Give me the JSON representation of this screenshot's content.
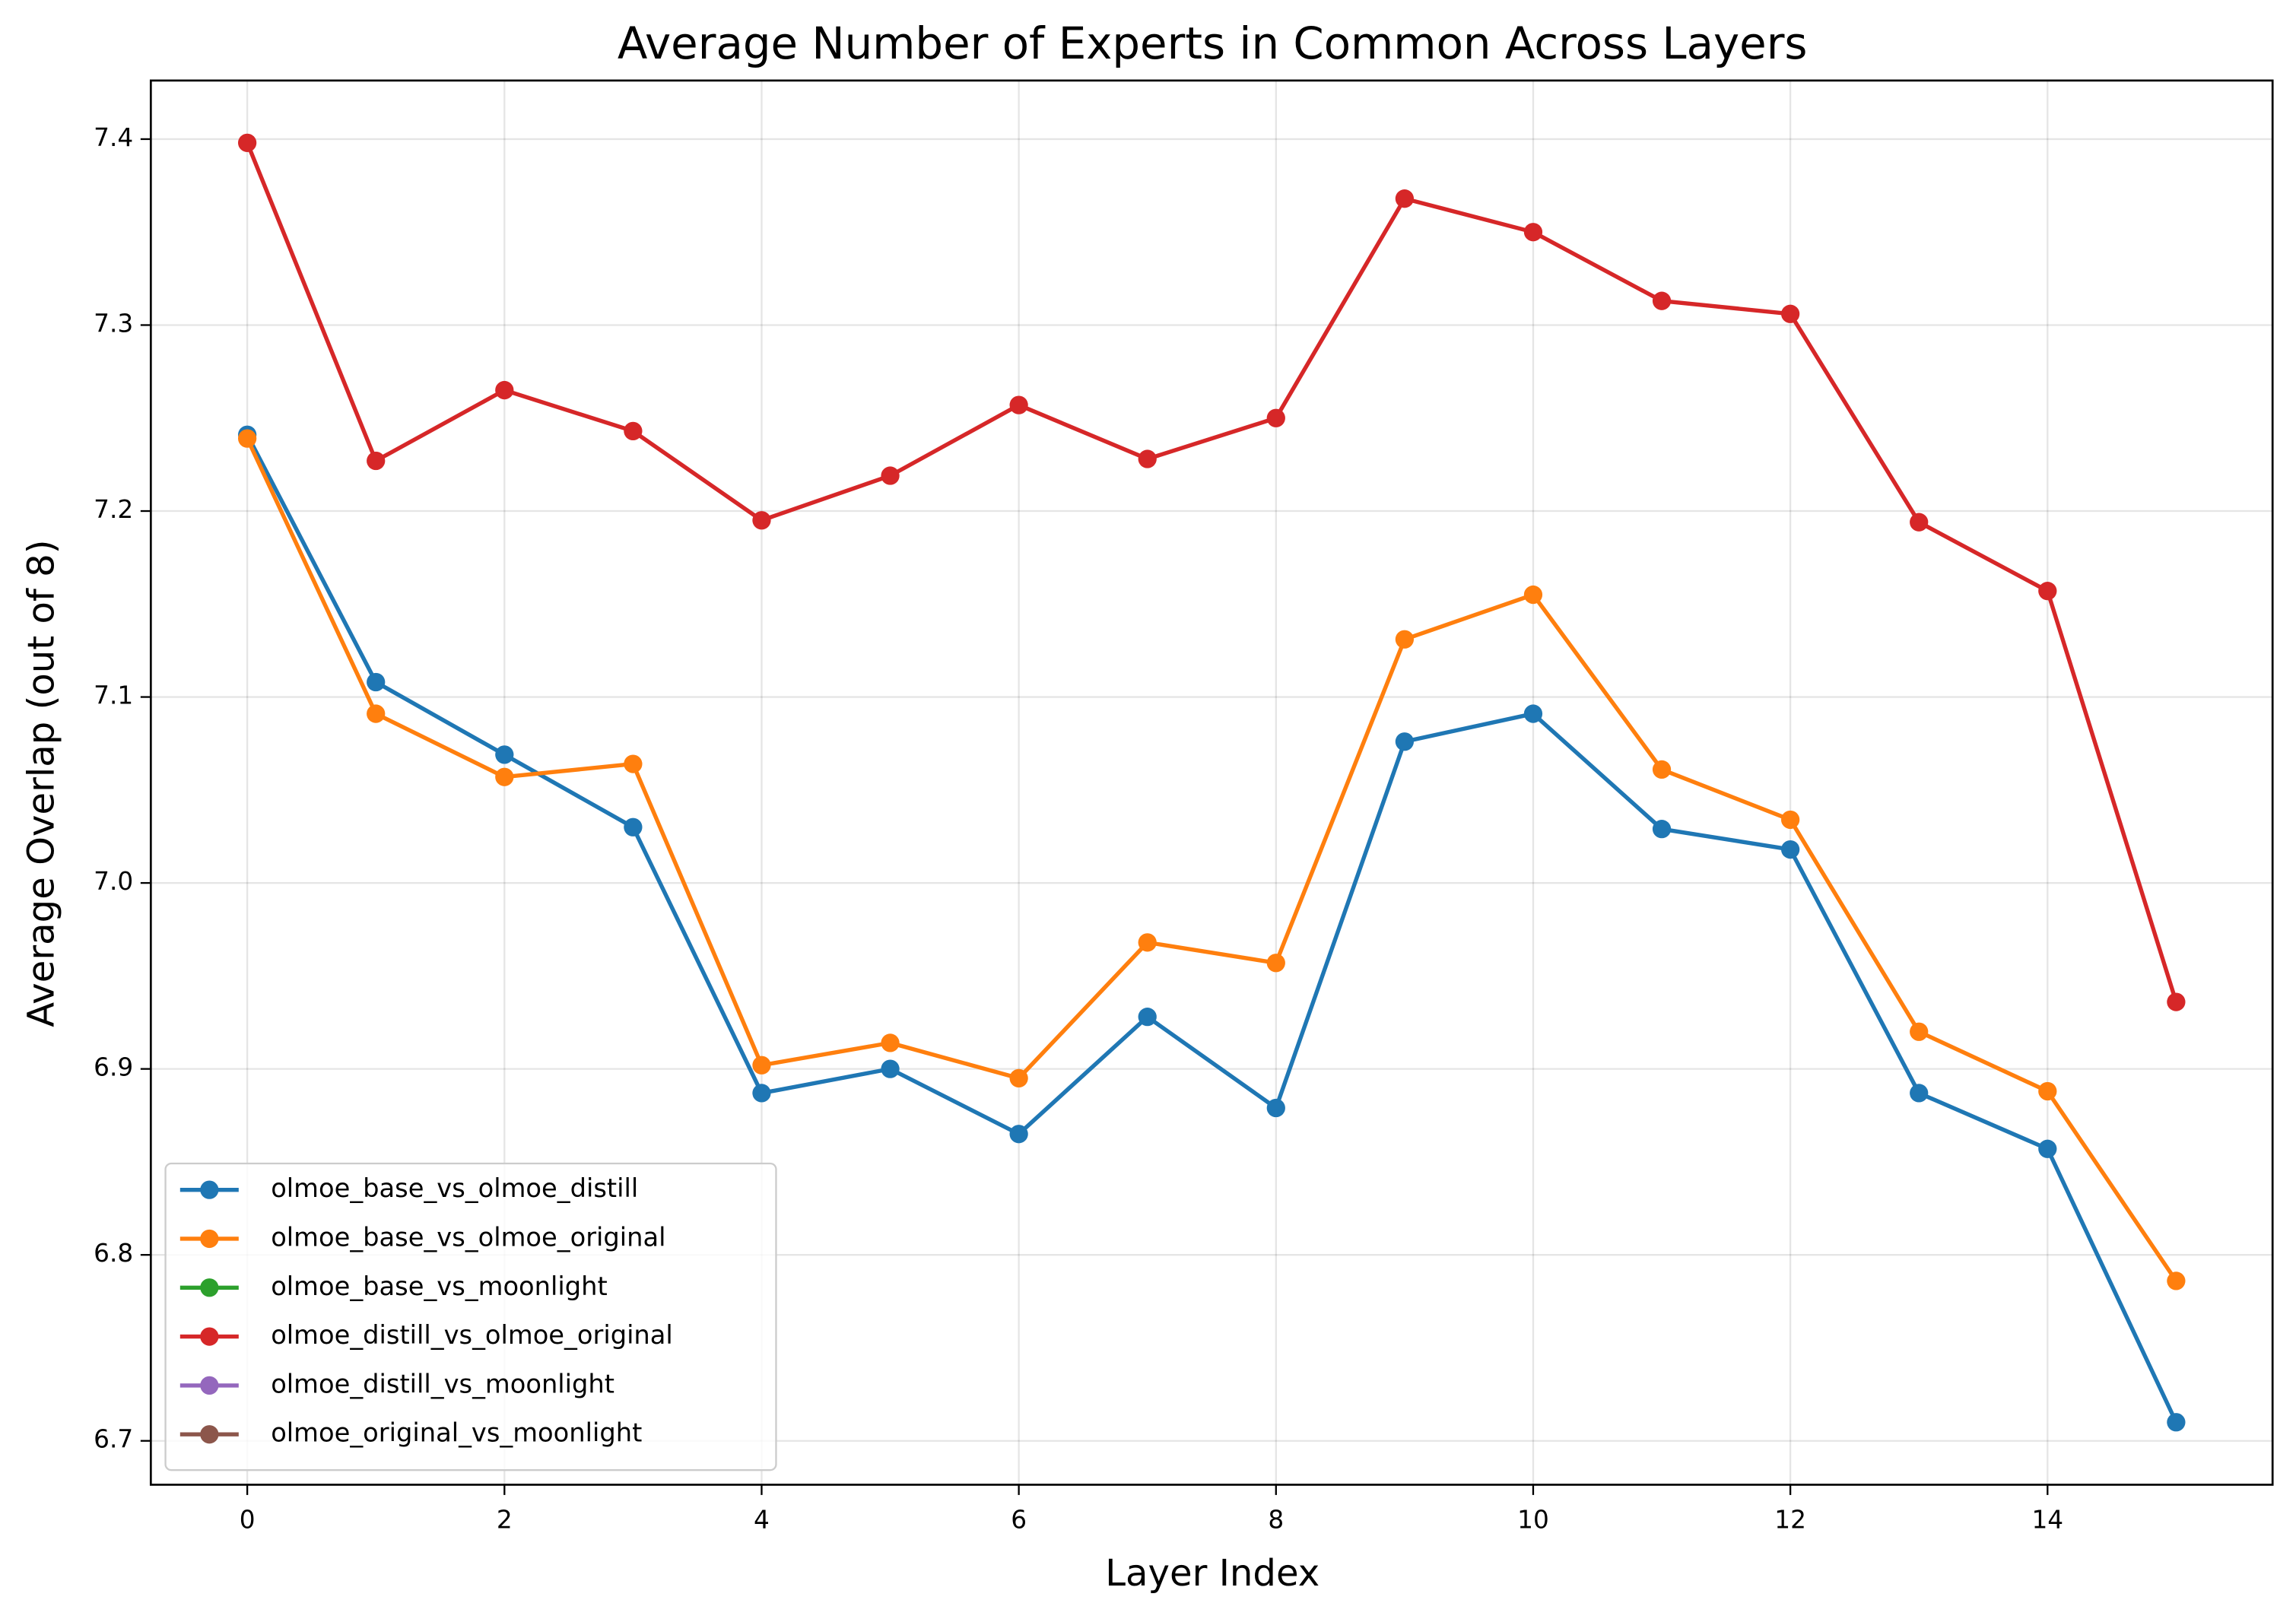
{
  "chart_data": {
    "type": "line",
    "title": "Average Number of Experts in Common Across Layers",
    "x_label": "Layer Index",
    "y_label": "Average Overlap (out of 8)",
    "x": [
      0,
      1,
      2,
      3,
      4,
      5,
      6,
      7,
      8,
      9,
      10,
      11,
      12,
      13,
      14,
      15
    ],
    "series": [
      {
        "name": "olmoe_base_vs_olmoe_distill",
        "color": "#1f77b4",
        "values": [
          7.241,
          7.108,
          7.069,
          7.03,
          6.887,
          6.9,
          6.865,
          6.928,
          6.879,
          7.076,
          7.091,
          7.029,
          7.018,
          6.887,
          6.857,
          6.71
        ]
      },
      {
        "name": "olmoe_base_vs_olmoe_original",
        "color": "#ff7f0e",
        "values": [
          7.239,
          7.091,
          7.057,
          7.064,
          6.902,
          6.914,
          6.895,
          6.968,
          6.957,
          7.131,
          7.155,
          7.061,
          7.034,
          6.92,
          6.888,
          6.786
        ]
      },
      {
        "name": "olmoe_base_vs_moonlight",
        "color": "#2ca02c",
        "values": [
          null,
          null,
          null,
          null,
          null,
          null,
          null,
          null,
          null,
          null,
          null,
          null,
          null,
          null,
          null,
          null
        ]
      },
      {
        "name": "olmoe_distill_vs_olmoe_original",
        "color": "#d62728",
        "values": [
          7.398,
          7.227,
          7.265,
          7.243,
          7.195,
          7.219,
          7.257,
          7.228,
          7.25,
          7.368,
          7.35,
          7.313,
          7.306,
          7.194,
          7.157,
          6.936
        ]
      },
      {
        "name": "olmoe_distill_vs_moonlight",
        "color": "#9467bd",
        "values": [
          null,
          null,
          null,
          null,
          null,
          null,
          null,
          null,
          null,
          null,
          null,
          null,
          null,
          null,
          null,
          null
        ]
      },
      {
        "name": "olmoe_original_vs_moonlight",
        "color": "#8c564b",
        "values": [
          null,
          null,
          null,
          null,
          null,
          null,
          null,
          null,
          null,
          null,
          null,
          null,
          null,
          null,
          null,
          null
        ]
      }
    ],
    "xlim": [
      -0.75,
      15.75
    ],
    "xticks": [
      0,
      2,
      4,
      6,
      8,
      10,
      12,
      14
    ],
    "ylim": [
      6.6764,
      7.4315
    ],
    "yticks": [
      6.7,
      6.8,
      6.9,
      {
        "value": 7,
        "label": "7.0"
      },
      7.1,
      7.2,
      7.3,
      7.4
    ],
    "grid": true,
    "legend": "lower left"
  }
}
